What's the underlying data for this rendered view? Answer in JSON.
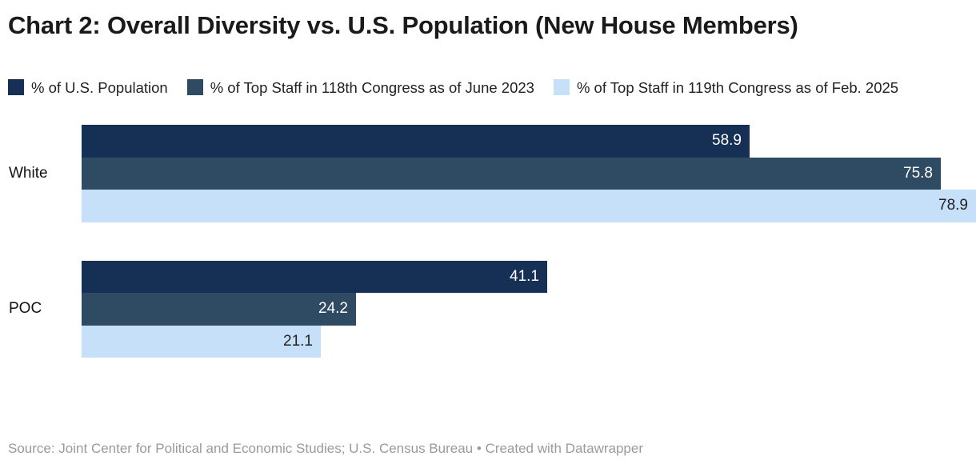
{
  "header": {
    "title": "Chart 2: Overall Diversity vs. U.S. Population (New House Members)"
  },
  "footer": {
    "source_line": "Source: Joint Center for Political and Economic Studies; U.S. Census Bureau • Created with Datawrapper"
  },
  "chart_data": {
    "type": "bar",
    "orientation": "horizontal",
    "title": "Chart 2: Overall Diversity vs. U.S. Population (New House Members)",
    "categories": [
      "White",
      "POC"
    ],
    "series": [
      {
        "name": "% of U.S. Population",
        "color": "#163055",
        "label_color": "#ffffff",
        "values": [
          58.9,
          41.1
        ]
      },
      {
        "name": "% of Top Staff in 118th Congress as of June 2023",
        "color": "#2F4A63",
        "label_color": "#ffffff",
        "values": [
          75.8,
          24.2
        ]
      },
      {
        "name": "% of Top Staff in 119th Congress as of Feb. 2025",
        "color": "#C6E0FA",
        "label_color": "#222222",
        "values": [
          78.9,
          21.1
        ]
      }
    ],
    "xlim": [
      0,
      80
    ],
    "grid": false,
    "legend_position": "top",
    "value_labels": "inside-end"
  }
}
